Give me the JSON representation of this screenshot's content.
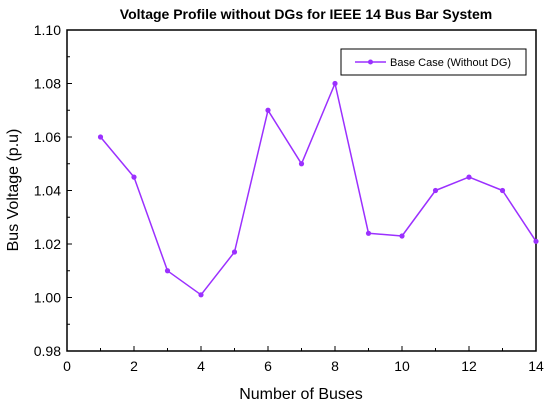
{
  "chart_data": {
    "type": "line",
    "title": "Voltage Profile without DGs for IEEE 14 Bus Bar System",
    "xlabel": "Number of Buses",
    "ylabel": "Bus Voltage (p.u)",
    "xlim": [
      0,
      14
    ],
    "ylim": [
      0.98,
      1.1
    ],
    "x_ticks": [
      "0",
      "2",
      "4",
      "6",
      "8",
      "10",
      "12",
      "14"
    ],
    "y_ticks": [
      "0.98",
      "1.00",
      "1.02",
      "1.04",
      "1.06",
      "1.08",
      "1.10"
    ],
    "grid": false,
    "legend_position": "top-right",
    "series": [
      {
        "name": "Base Case (Without DG)",
        "color": "#9b30ff",
        "x": [
          1,
          2,
          3,
          4,
          5,
          6,
          7,
          8,
          9,
          10,
          11,
          12,
          13,
          14
        ],
        "y": [
          1.06,
          1.045,
          1.01,
          1.001,
          1.017,
          1.07,
          1.05,
          1.08,
          1.024,
          1.023,
          1.04,
          1.045,
          1.04,
          1.021
        ]
      }
    ]
  }
}
